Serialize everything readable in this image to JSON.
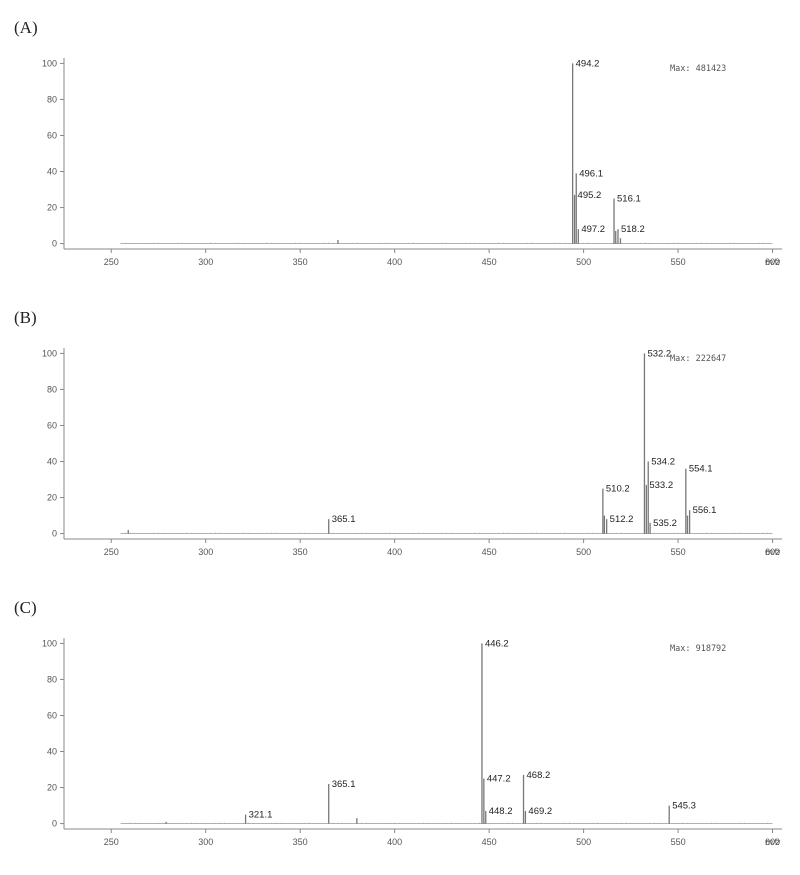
{
  "chart_data": [
    {
      "type": "bar",
      "panel_label": "(A)",
      "max_label": "Max: 481423",
      "xlabel": "m/z",
      "xlim": [
        225,
        605
      ],
      "ylim": [
        -3,
        103
      ],
      "x_ticks": [
        250,
        300,
        350,
        400,
        450,
        500,
        550,
        600
      ],
      "y_ticks": [
        0,
        20,
        40,
        60,
        80,
        100
      ],
      "peaks": [
        {
          "x": 494.2,
          "y": 100,
          "label": "494.2"
        },
        {
          "x": 495.2,
          "y": 27,
          "label": "495.2"
        },
        {
          "x": 496.1,
          "y": 39,
          "label": "496.1"
        },
        {
          "x": 497.2,
          "y": 8,
          "label": "497.2"
        },
        {
          "x": 516.1,
          "y": 25,
          "label": "516.1"
        },
        {
          "x": 518.2,
          "y": 8,
          "label": "518.2"
        },
        {
          "x": 370,
          "y": 2,
          "label": ""
        },
        {
          "x": 517,
          "y": 7,
          "label": ""
        },
        {
          "x": 519.5,
          "y": 3,
          "label": ""
        }
      ]
    },
    {
      "type": "bar",
      "panel_label": "(B)",
      "max_label": "Max: 222647",
      "xlabel": "m/z",
      "xlim": [
        225,
        605
      ],
      "ylim": [
        -3,
        103
      ],
      "x_ticks": [
        250,
        300,
        350,
        400,
        450,
        500,
        550,
        600
      ],
      "y_ticks": [
        0,
        20,
        40,
        60,
        80,
        100
      ],
      "peaks": [
        {
          "x": 532.2,
          "y": 100,
          "label": "532.2"
        },
        {
          "x": 534.2,
          "y": 40,
          "label": "534.2"
        },
        {
          "x": 533.2,
          "y": 27,
          "label": "533.2"
        },
        {
          "x": 554.1,
          "y": 36,
          "label": "554.1"
        },
        {
          "x": 510.2,
          "y": 25,
          "label": "510.2"
        },
        {
          "x": 556.1,
          "y": 13,
          "label": "556.1"
        },
        {
          "x": 512.2,
          "y": 8,
          "label": "512.2"
        },
        {
          "x": 535.2,
          "y": 6,
          "label": "535.2"
        },
        {
          "x": 365.1,
          "y": 8,
          "label": "365.1"
        },
        {
          "x": 259,
          "y": 2,
          "label": ""
        },
        {
          "x": 511,
          "y": 10,
          "label": ""
        },
        {
          "x": 555,
          "y": 10,
          "label": ""
        }
      ]
    },
    {
      "type": "bar",
      "panel_label": "(C)",
      "max_label": "Max: 918792",
      "xlabel": "m/z",
      "xlim": [
        225,
        605
      ],
      "ylim": [
        -3,
        103
      ],
      "x_ticks": [
        250,
        300,
        350,
        400,
        450,
        500,
        550,
        600
      ],
      "y_ticks": [
        0,
        20,
        40,
        60,
        80,
        100
      ],
      "peaks": [
        {
          "x": 446.2,
          "y": 100,
          "label": "446.2"
        },
        {
          "x": 447.2,
          "y": 25,
          "label": "447.2"
        },
        {
          "x": 448.2,
          "y": 7,
          "label": "448.2"
        },
        {
          "x": 468.2,
          "y": 27,
          "label": "468.2"
        },
        {
          "x": 469.2,
          "y": 7,
          "label": "469.2"
        },
        {
          "x": 365.1,
          "y": 22,
          "label": "365.1"
        },
        {
          "x": 321.1,
          "y": 5,
          "label": "321.1"
        },
        {
          "x": 545.3,
          "y": 10,
          "label": "545.3"
        },
        {
          "x": 380,
          "y": 3,
          "label": ""
        },
        {
          "x": 279,
          "y": 1,
          "label": ""
        }
      ]
    }
  ]
}
